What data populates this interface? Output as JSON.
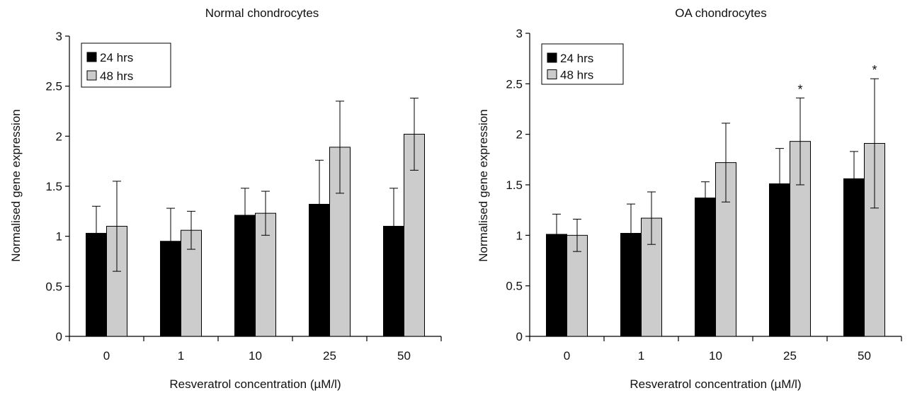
{
  "chart_data": [
    {
      "type": "bar",
      "title": "Normal chondrocytes",
      "xlabel": "Resveratrol concentration (µM/l)",
      "ylabel": "Normalised gene expression",
      "ylim": [
        0,
        3
      ],
      "yticks": [
        "0",
        "0.5",
        "1",
        "1.5",
        "2",
        "2.5",
        "3"
      ],
      "categories": [
        "0",
        "1",
        "10",
        "25",
        "50"
      ],
      "legend_position": "top-left",
      "series": [
        {
          "name": "24 hrs",
          "color": "#000000",
          "values": [
            1.03,
            0.95,
            1.21,
            1.32,
            1.1
          ],
          "errors": [
            0.27,
            0.33,
            0.27,
            0.44,
            0.38
          ],
          "annotations": [
            "",
            "",
            "",
            "",
            ""
          ]
        },
        {
          "name": "48 hrs",
          "color": "#cccccc",
          "values": [
            1.1,
            1.06,
            1.23,
            1.89,
            2.02
          ],
          "errors": [
            0.45,
            0.19,
            0.22,
            0.46,
            0.36
          ],
          "annotations": [
            "",
            "",
            "",
            "",
            ""
          ]
        }
      ]
    },
    {
      "type": "bar",
      "title": "OA chondrocytes",
      "xlabel": "Resveratrol concentration (µM/l)",
      "ylabel": "Normalised gene expression",
      "ylim": [
        0,
        3
      ],
      "yticks": [
        "0",
        "0.5",
        "1",
        "1.5",
        "2",
        "2.5",
        "3"
      ],
      "categories": [
        "0",
        "1",
        "10",
        "25",
        "50"
      ],
      "legend_position": "top-left",
      "series": [
        {
          "name": "24 hrs",
          "color": "#000000",
          "values": [
            1.01,
            1.02,
            1.37,
            1.51,
            1.56
          ],
          "errors": [
            0.2,
            0.29,
            0.16,
            0.35,
            0.27
          ],
          "annotations": [
            "",
            "",
            "",
            "",
            ""
          ]
        },
        {
          "name": "48 hrs",
          "color": "#cccccc",
          "values": [
            1.0,
            1.17,
            1.72,
            1.93,
            1.91
          ],
          "errors": [
            0.16,
            0.26,
            0.39,
            0.43,
            0.64
          ],
          "annotations": [
            "",
            "",
            "",
            "*",
            "*"
          ]
        }
      ]
    }
  ]
}
